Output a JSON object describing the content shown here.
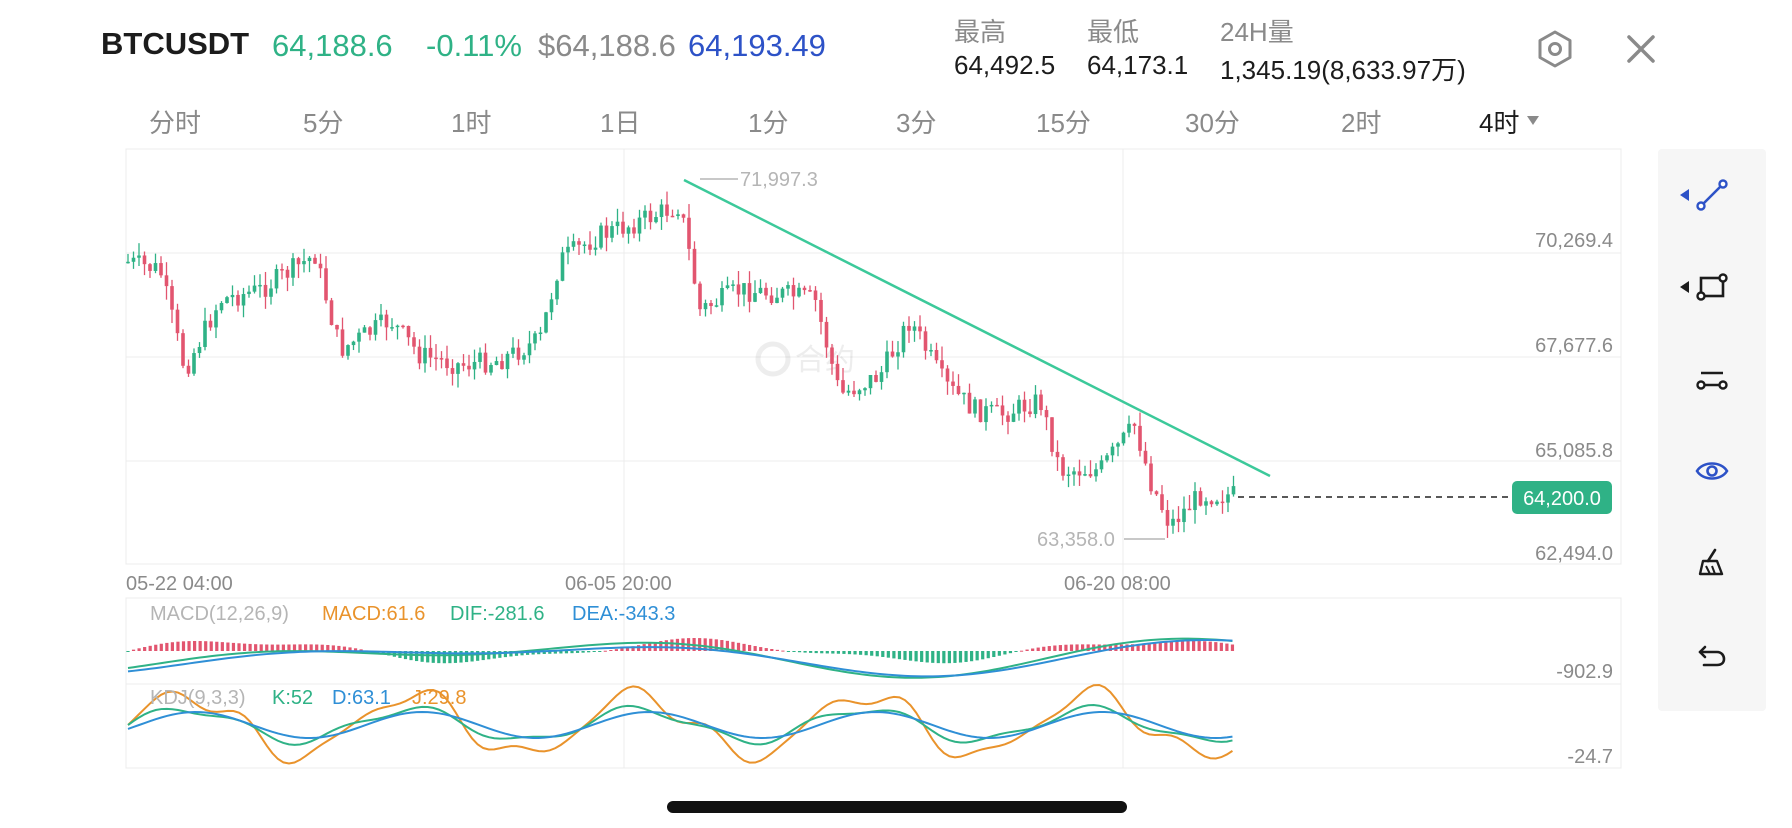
{
  "header": {
    "symbol": "BTCUSDT",
    "last_price": "64,188.6",
    "change_pct": "-0.11%",
    "usd_price": "$64,188.6",
    "index_price": "64,193.49",
    "stats": [
      {
        "label": "最高",
        "value": "64,492.5"
      },
      {
        "label": "最低",
        "value": "64,173.1"
      },
      {
        "label": "24H量",
        "value": "1,345.19(8,633.97万)"
      }
    ],
    "settings_icon": "hexagon-settings-icon",
    "close_icon": "close-icon"
  },
  "timeframes": {
    "items": [
      "分时",
      "5分",
      "1时",
      "1日",
      "1分",
      "3分",
      "15分",
      "30分",
      "2时",
      "4时"
    ],
    "active": "4时",
    "dropdown_icon": "triangle-down-icon"
  },
  "chart_data": [
    {
      "type": "candlestick",
      "y_axis_labels": [
        "70,269.4",
        "67,677.6",
        "65,085.8",
        "62,494.0"
      ],
      "x_axis_labels": [
        "05-22 04:00",
        "06-05 20:00",
        "06-20 08:00"
      ],
      "high_marker": "71,997.3",
      "low_marker": "63,358.0",
      "current_price_tag": "64,200.0",
      "ylim": [
        62494.0,
        72600
      ],
      "grid": true,
      "trendline": {
        "from": 71997.3,
        "to": 64800
      }
    },
    {
      "type": "indicator",
      "name": "MACD(12,26,9)",
      "labels": [
        {
          "text": "MACD(12,26,9)",
          "color": "#b5b5b5"
        },
        {
          "text": "MACD:61.6",
          "color": "#e9932c"
        },
        {
          "text": "DIF:-281.6",
          "color": "#2fb286"
        },
        {
          "text": "DEA:-343.3",
          "color": "#2f8fd6"
        }
      ],
      "axis_label": "-902.9"
    },
    {
      "type": "indicator",
      "name": "KDJ(9,3,3)",
      "labels": [
        {
          "text": "KDJ(9,3,3)",
          "color": "#b5b5b5"
        },
        {
          "text": "K:52",
          "color": "#2fb286"
        },
        {
          "text": "D:63.1",
          "color": "#2f8fd6"
        },
        {
          "text": "J:29.8",
          "color": "#e9932c"
        }
      ],
      "axis_label": "-24.7"
    }
  ],
  "toolbar": [
    {
      "icon": "trendline-tool-icon",
      "has_arrow": true,
      "arrow_color": "#2d52c7",
      "color": "#2d52c7"
    },
    {
      "icon": "rectangle-tool-icon",
      "has_arrow": true,
      "arrow_color": "#1c1c1c",
      "color": "#1c1c1c"
    },
    {
      "icon": "parallel-channel-tool-icon",
      "has_arrow": false,
      "color": "#1c1c1c"
    },
    {
      "icon": "visibility-eye-icon",
      "has_arrow": false,
      "color": "#2d52c7"
    },
    {
      "icon": "eraser-brush-icon",
      "has_arrow": false,
      "color": "#1c1c1c"
    },
    {
      "icon": "undo-icon",
      "has_arrow": false,
      "color": "#1c1c1c"
    }
  ],
  "colors": {
    "up": "#2fb286",
    "down": "#e2556f",
    "accent": "#2d52c7",
    "trendline": "#3cc99a"
  }
}
